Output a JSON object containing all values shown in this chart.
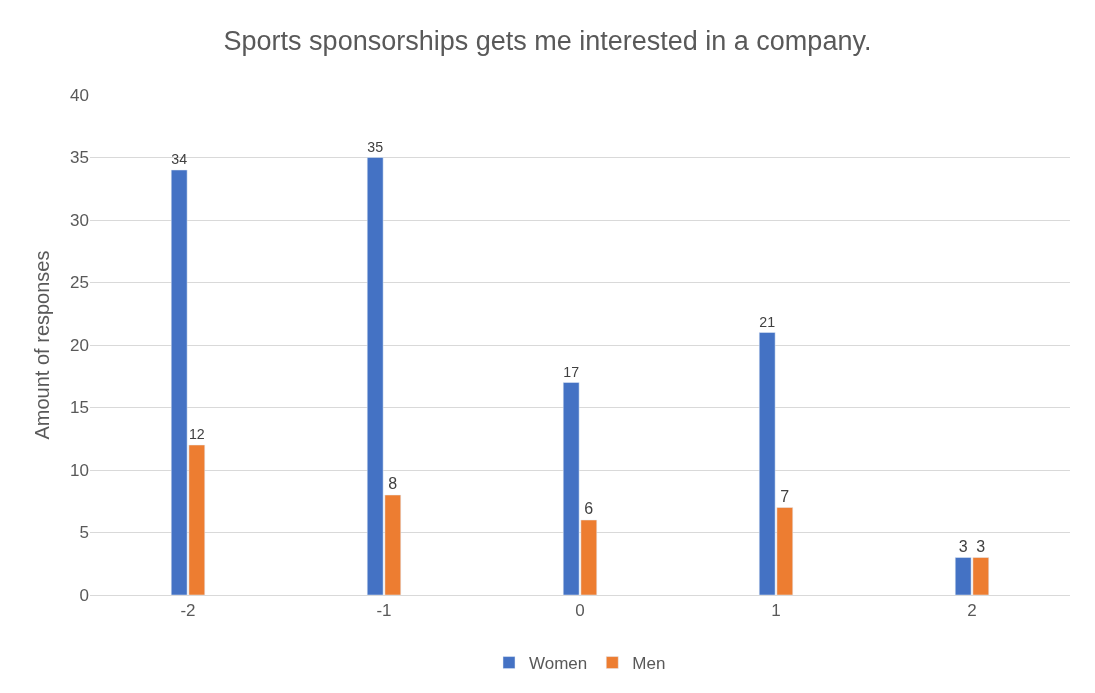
{
  "chart_data": {
    "type": "bar",
    "title": "Sports sponsorships gets me interested in a company.",
    "ylabel": "Amount of responses",
    "categories": [
      "-2",
      "-1",
      "0",
      "1",
      "2"
    ],
    "series": [
      {
        "name": "Women",
        "color": "#4472c4",
        "values": [
          34,
          35,
          17,
          21,
          3
        ]
      },
      {
        "name": "Men",
        "color": "#ed7d31",
        "values": [
          12,
          8,
          6,
          7,
          3
        ]
      }
    ],
    "ylim": [
      0,
      40
    ],
    "yticks": [
      0,
      5,
      10,
      15,
      20,
      25,
      30,
      35,
      40
    ],
    "grid": "y",
    "legend": "bottom",
    "data_labels": true
  }
}
